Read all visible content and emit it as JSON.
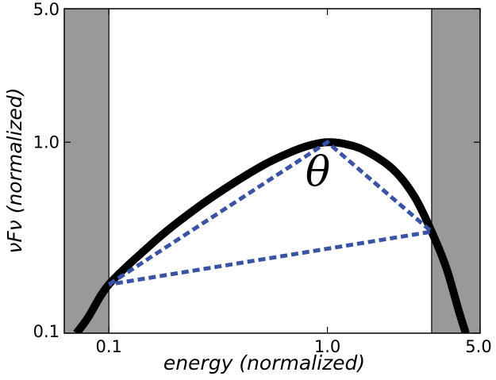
{
  "chart_data": {
    "type": "line",
    "title": "",
    "xlabel": "energy (normalized)",
    "ylabel": "νFν (normalized)",
    "x_scale": "log",
    "y_scale": "log",
    "xlim": [
      0.0625,
      5.0
    ],
    "ylim": [
      0.1,
      5.0
    ],
    "x_ticks": [
      {
        "value": 0.1,
        "label": "0.1"
      },
      {
        "value": 1.0,
        "label": "1.0"
      },
      {
        "value": 5.0,
        "label": "5.0"
      }
    ],
    "y_ticks": [
      {
        "value": 0.1,
        "label": "0.1"
      },
      {
        "value": 1.0,
        "label": "1.0"
      },
      {
        "value": 5.0,
        "label": "5.0"
      }
    ],
    "shaded_regions": [
      {
        "x_from": 0.0625,
        "x_to": 0.1,
        "color": "#999999"
      },
      {
        "x_from": 3.0,
        "x_to": 5.0,
        "color": "#999999"
      }
    ],
    "series": [
      {
        "style": "solid",
        "color": "#000000",
        "x": [
          0.071,
          0.08,
          0.1,
          0.15,
          0.2,
          0.3,
          0.5,
          0.7,
          0.85,
          1.0,
          1.2,
          1.5,
          2.0,
          2.5,
          3.0,
          3.5,
          4.0,
          4.3
        ],
        "y": [
          0.1,
          0.12,
          0.18,
          0.28,
          0.37,
          0.52,
          0.75,
          0.9,
          0.97,
          1.0,
          0.98,
          0.9,
          0.72,
          0.52,
          0.34,
          0.22,
          0.13,
          0.1
        ]
      },
      {
        "style": "dotted",
        "color": "#3a53a4",
        "x": [
          0.1,
          1.0,
          3.0,
          0.1
        ],
        "y": [
          0.18,
          1.0,
          0.34,
          0.18
        ]
      }
    ],
    "annotations": [
      {
        "text": "θ",
        "x": 1.0,
        "y": 0.7
      }
    ]
  }
}
